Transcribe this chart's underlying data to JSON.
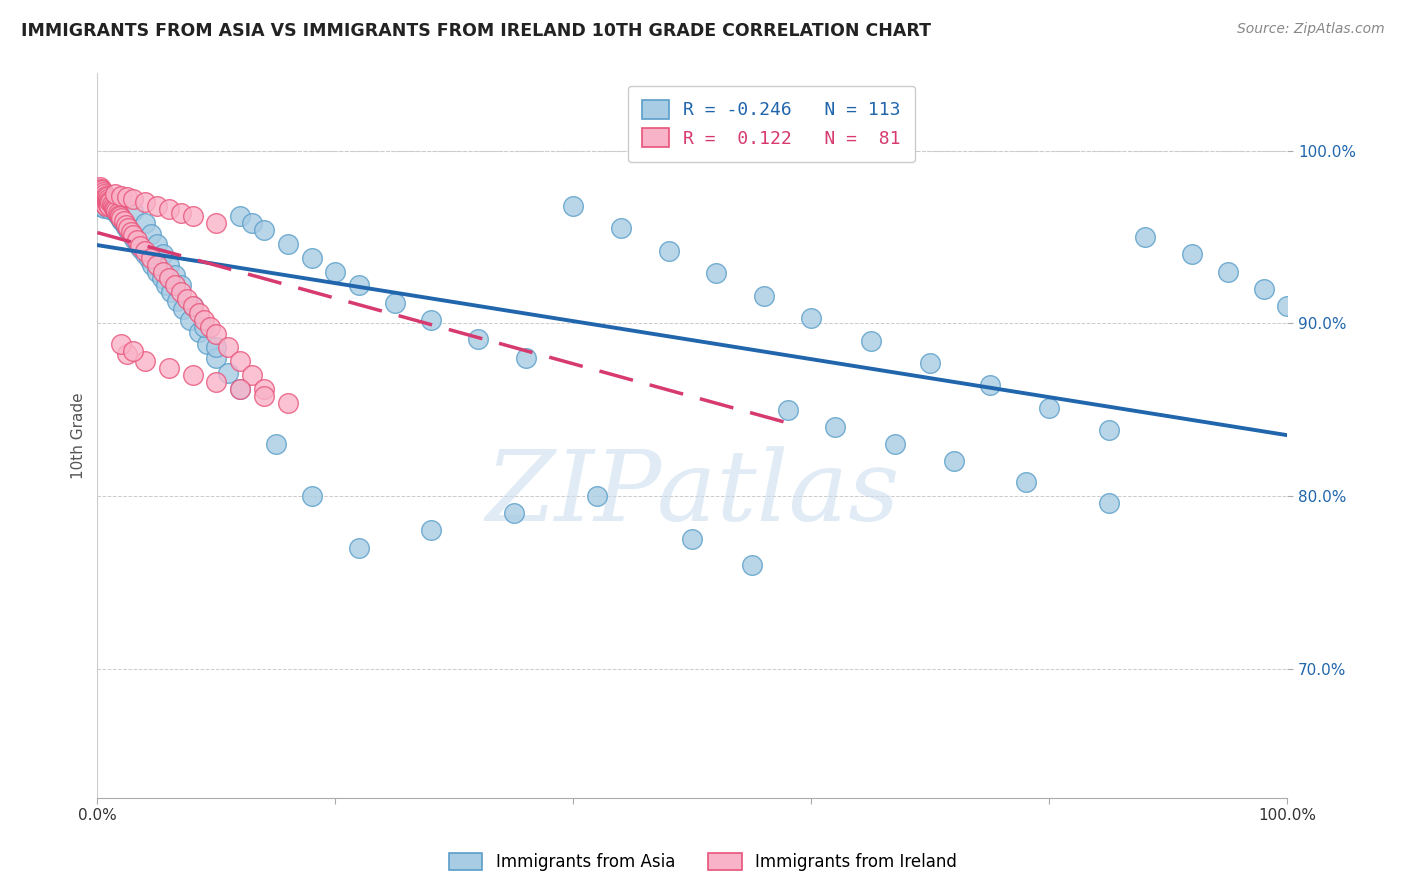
{
  "title": "IMMIGRANTS FROM ASIA VS IMMIGRANTS FROM IRELAND 10TH GRADE CORRELATION CHART",
  "source": "Source: ZipAtlas.com",
  "ylabel": "10th Grade",
  "watermark": "ZIPatlas",
  "asia_color_face": "#a8cce4",
  "asia_color_edge": "#5a9ec9",
  "ireland_color_face": "#f9b3c8",
  "ireland_color_edge": "#e8547a",
  "asia_line_color": "#2166ac",
  "ireland_line_color": "#d63a6e",
  "xlim": [
    0.0,
    1.0
  ],
  "ylim": [
    0.625,
    1.045
  ],
  "yticks": [
    0.7,
    0.8,
    0.9,
    1.0
  ],
  "xticks": [
    0.0,
    0.2,
    0.4,
    0.6,
    0.8,
    1.0
  ],
  "legend1_text": "R = -0.246   N = 113",
  "legend2_text": "R =  0.122   N =  81",
  "legend1_color": "#2166ac",
  "legend2_color": "#d63a6e",
  "bottom_legend1": "Immigrants from Asia",
  "bottom_legend2": "Immigrants from Ireland",
  "asia_x": [
    0.001,
    0.001,
    0.002,
    0.002,
    0.002,
    0.003,
    0.003,
    0.003,
    0.004,
    0.004,
    0.004,
    0.005,
    0.005,
    0.005,
    0.006,
    0.006,
    0.006,
    0.007,
    0.007,
    0.008,
    0.008,
    0.009,
    0.009,
    0.01,
    0.01,
    0.011,
    0.012,
    0.013,
    0.014,
    0.015,
    0.016,
    0.017,
    0.018,
    0.019,
    0.02,
    0.021,
    0.022,
    0.023,
    0.024,
    0.025,
    0.027,
    0.029,
    0.031,
    0.033,
    0.035,
    0.037,
    0.04,
    0.043,
    0.046,
    0.05,
    0.054,
    0.058,
    0.062,
    0.067,
    0.072,
    0.078,
    0.085,
    0.092,
    0.1,
    0.11,
    0.12,
    0.13,
    0.14,
    0.16,
    0.18,
    0.2,
    0.22,
    0.25,
    0.28,
    0.32,
    0.36,
    0.4,
    0.44,
    0.48,
    0.52,
    0.56,
    0.6,
    0.65,
    0.7,
    0.75,
    0.8,
    0.85,
    0.88,
    0.92,
    0.95,
    0.98,
    1.0,
    0.03,
    0.04,
    0.045,
    0.05,
    0.055,
    0.06,
    0.065,
    0.07,
    0.08,
    0.09,
    0.1,
    0.12,
    0.15,
    0.18,
    0.22,
    0.28,
    0.35,
    0.42,
    0.5,
    0.55,
    0.58,
    0.62,
    0.67,
    0.72,
    0.78,
    0.85
  ],
  "asia_y": [
    0.973,
    0.968,
    0.975,
    0.972,
    0.969,
    0.974,
    0.971,
    0.968,
    0.976,
    0.972,
    0.969,
    0.975,
    0.971,
    0.968,
    0.974,
    0.97,
    0.967,
    0.973,
    0.969,
    0.972,
    0.968,
    0.971,
    0.967,
    0.97,
    0.966,
    0.969,
    0.968,
    0.967,
    0.966,
    0.965,
    0.964,
    0.963,
    0.962,
    0.961,
    0.96,
    0.959,
    0.958,
    0.957,
    0.956,
    0.955,
    0.953,
    0.951,
    0.949,
    0.947,
    0.945,
    0.943,
    0.94,
    0.937,
    0.934,
    0.93,
    0.926,
    0.922,
    0.918,
    0.913,
    0.908,
    0.902,
    0.895,
    0.888,
    0.88,
    0.871,
    0.962,
    0.958,
    0.954,
    0.946,
    0.938,
    0.93,
    0.922,
    0.912,
    0.902,
    0.891,
    0.88,
    0.968,
    0.955,
    0.942,
    0.929,
    0.916,
    0.903,
    0.89,
    0.877,
    0.864,
    0.851,
    0.838,
    0.95,
    0.94,
    0.93,
    0.92,
    0.91,
    0.965,
    0.958,
    0.952,
    0.946,
    0.94,
    0.934,
    0.928,
    0.922,
    0.91,
    0.898,
    0.886,
    0.862,
    0.83,
    0.8,
    0.77,
    0.78,
    0.79,
    0.8,
    0.775,
    0.76,
    0.85,
    0.84,
    0.83,
    0.82,
    0.808,
    0.796
  ],
  "ireland_x": [
    0.001,
    0.001,
    0.002,
    0.002,
    0.002,
    0.003,
    0.003,
    0.003,
    0.004,
    0.004,
    0.004,
    0.005,
    0.005,
    0.005,
    0.006,
    0.006,
    0.006,
    0.007,
    0.007,
    0.007,
    0.008,
    0.008,
    0.009,
    0.009,
    0.01,
    0.01,
    0.011,
    0.012,
    0.013,
    0.014,
    0.015,
    0.016,
    0.017,
    0.018,
    0.019,
    0.02,
    0.022,
    0.024,
    0.026,
    0.028,
    0.03,
    0.033,
    0.036,
    0.04,
    0.045,
    0.05,
    0.055,
    0.06,
    0.065,
    0.07,
    0.075,
    0.08,
    0.085,
    0.09,
    0.095,
    0.1,
    0.11,
    0.12,
    0.13,
    0.14,
    0.015,
    0.02,
    0.025,
    0.03,
    0.04,
    0.05,
    0.06,
    0.07,
    0.08,
    0.1,
    0.025,
    0.04,
    0.06,
    0.08,
    0.1,
    0.12,
    0.14,
    0.16,
    0.02,
    0.03,
    0.55
  ],
  "ireland_y": [
    0.978,
    0.975,
    0.979,
    0.976,
    0.973,
    0.978,
    0.975,
    0.972,
    0.977,
    0.974,
    0.971,
    0.976,
    0.973,
    0.97,
    0.975,
    0.972,
    0.969,
    0.974,
    0.971,
    0.968,
    0.973,
    0.97,
    0.972,
    0.969,
    0.971,
    0.968,
    0.97,
    0.969,
    0.968,
    0.967,
    0.966,
    0.965,
    0.964,
    0.963,
    0.962,
    0.961,
    0.959,
    0.957,
    0.955,
    0.953,
    0.951,
    0.948,
    0.945,
    0.942,
    0.938,
    0.934,
    0.93,
    0.926,
    0.922,
    0.918,
    0.914,
    0.91,
    0.906,
    0.902,
    0.898,
    0.894,
    0.886,
    0.878,
    0.87,
    0.862,
    0.975,
    0.974,
    0.973,
    0.972,
    0.97,
    0.968,
    0.966,
    0.964,
    0.962,
    0.958,
    0.882,
    0.878,
    0.874,
    0.87,
    0.866,
    0.862,
    0.858,
    0.854,
    0.888,
    0.884,
    1.0
  ]
}
